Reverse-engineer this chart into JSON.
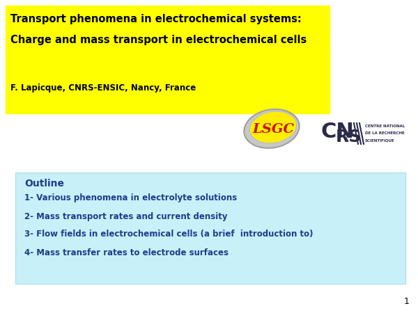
{
  "title_line1": "Transport phenomena in electrochemical systems:",
  "title_line2": "Charge and mass transport in electrochemical cells",
  "author": "F. Lapicque, CNRS-ENSIC, Nancy, France",
  "title_bg_color": "#FFFF00",
  "title_text_color": "#000000",
  "author_text_color": "#000000",
  "outline_bg_color": "#C8F0F8",
  "outline_title": "Outline",
  "outline_title_color": "#1E3A8A",
  "outline_items": [
    "1- Various phenomena in electrolyte solutions",
    "2- Mass transport rates and current density",
    "3- Flow fields in electrochemical cells (a brief  introduction to)",
    "4- Mass transfer rates to electrode surfaces"
  ],
  "outline_text_color": "#1E3A8A",
  "lsgc_text": "LSGC",
  "lsgc_text_color": "#CC1100",
  "lsgc_ellipse_yellow": "#FFEE00",
  "lsgc_ellipse_gray": "#B8B8B8",
  "cnrs_text_lines": [
    "CENTRE NATIONAL",
    "DE LA RECHERCHE",
    "SCIENTIFIQUE"
  ],
  "cnrs_text_color": "#2a2a4a",
  "page_number": "1",
  "background_color": "#FFFFFF"
}
